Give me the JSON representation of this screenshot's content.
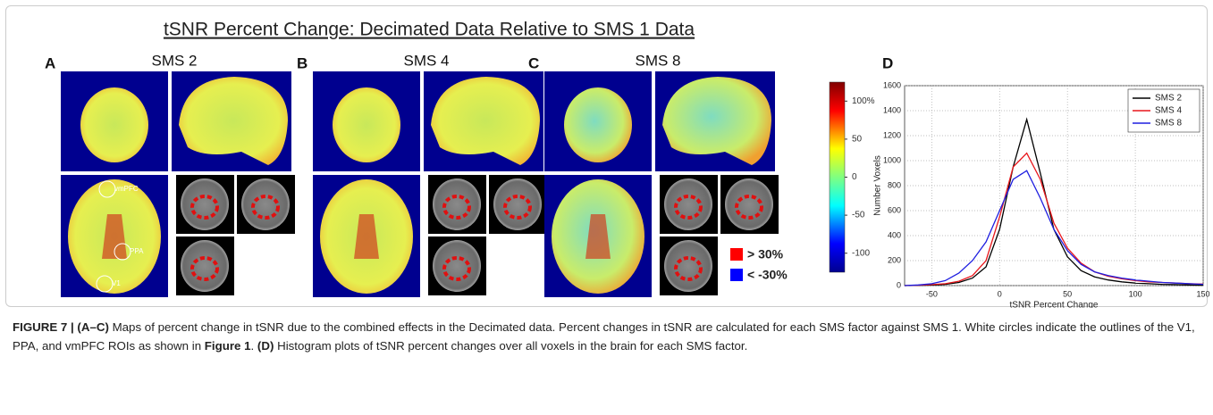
{
  "figure": {
    "title": "tSNR Percent Change: Decimated Data Relative to SMS 1 Data",
    "panels": [
      {
        "label": "A",
        "title": "SMS 2"
      },
      {
        "label": "B",
        "title": "SMS 4"
      },
      {
        "label": "C",
        "title": "SMS 8"
      }
    ],
    "roi_labels": [
      "vmPFC",
      "PPA",
      "V1"
    ],
    "colorbar": {
      "lim": [
        -125,
        125
      ],
      "ticks": [
        {
          "value": 100,
          "label": "100%"
        },
        50,
        0,
        -50,
        -100
      ]
    },
    "threshold_legend": [
      "> 30%",
      "< -30%"
    ],
    "panel_d_label": "D"
  },
  "chart_data": {
    "type": "line",
    "xlabel": "tSNR Percent Change",
    "ylabel": "Number Voxels",
    "x": [
      -70,
      -60,
      -50,
      -40,
      -30,
      -20,
      -10,
      0,
      10,
      20,
      30,
      40,
      50,
      60,
      70,
      80,
      90,
      100,
      110,
      120,
      130,
      140,
      150
    ],
    "series": [
      {
        "name": "SMS 2",
        "color": "#000000",
        "values": [
          0,
          2,
          5,
          10,
          25,
          60,
          150,
          450,
          950,
          1330,
          900,
          450,
          230,
          120,
          70,
          45,
          30,
          20,
          15,
          10,
          8,
          5,
          3
        ]
      },
      {
        "name": "SMS 4",
        "color": "#e8161b",
        "values": [
          0,
          3,
          8,
          15,
          35,
          80,
          200,
          550,
          950,
          1060,
          850,
          500,
          300,
          180,
          110,
          75,
          55,
          40,
          30,
          25,
          20,
          15,
          12
        ]
      },
      {
        "name": "SMS 8",
        "color": "#1f1fe0",
        "values": [
          0,
          5,
          15,
          40,
          100,
          200,
          350,
          600,
          850,
          920,
          700,
          450,
          280,
          170,
          110,
          80,
          60,
          45,
          35,
          25,
          20,
          15,
          10
        ]
      }
    ],
    "xlim": [
      -70,
      150
    ],
    "xticks": [
      -50,
      0,
      50,
      100,
      150
    ],
    "ylim": [
      0,
      1600
    ],
    "yticks": [
      0,
      200,
      400,
      600,
      800,
      1000,
      1200,
      1400,
      1600
    ],
    "grid": true,
    "legend": "upper right"
  },
  "caption": {
    "segments": [
      {
        "text": "FIGURE 7 | (A–C)",
        "bold": true
      },
      {
        "text": " Maps of percent change in tSNR due to the combined effects in the Decimated data. Percent changes in tSNR are calculated for each SMS factor against SMS 1. White circles indicate the outlines of the V1, PPA, and vmPFC ROIs as shown in ",
        "bold": false
      },
      {
        "text": "Figure 1",
        "bold": true
      },
      {
        "text": ". ",
        "bold": false
      },
      {
        "text": "(D)",
        "bold": true
      },
      {
        "text": " Histogram plots of tSNR percent changes over all voxels in the brain for each SMS factor.",
        "bold": false
      }
    ]
  }
}
